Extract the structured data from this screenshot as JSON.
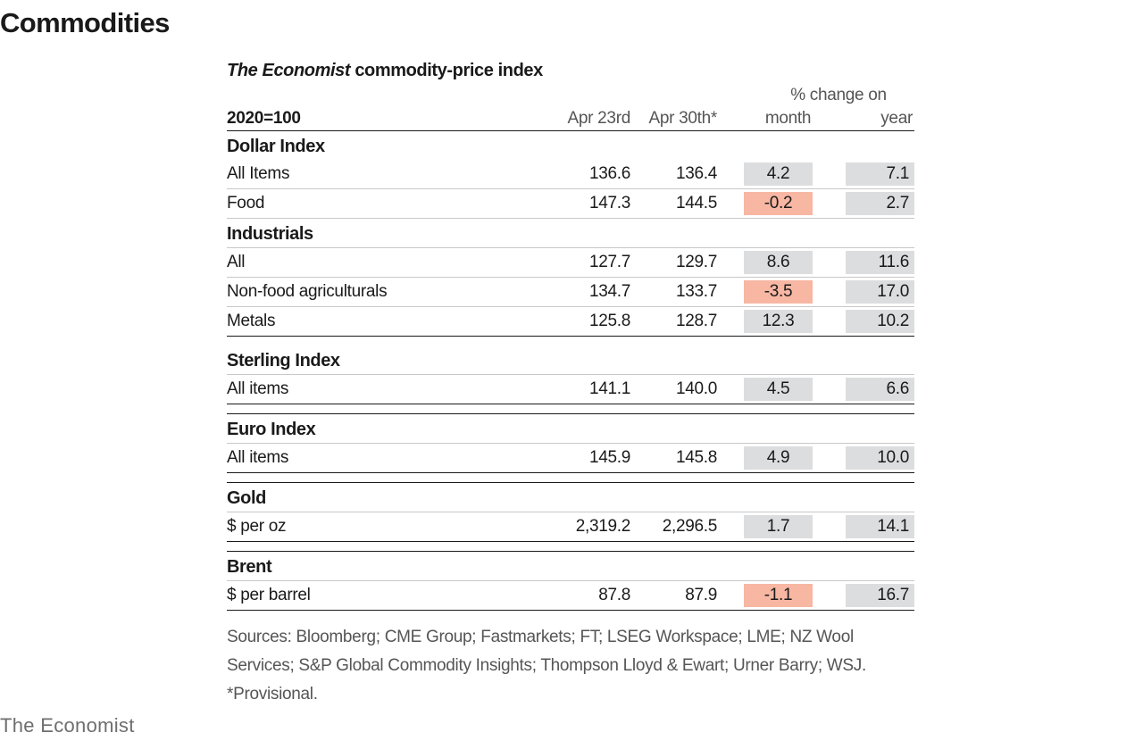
{
  "page_title": "Commodities",
  "table": {
    "title_italic": "The Economist",
    "title_rest": " commodity-price index",
    "pct_header": "% change on",
    "base_label": "2020=100",
    "col_apr23": "Apr 23rd",
    "col_apr30": "Apr 30th*",
    "col_month": "month",
    "col_year": "year",
    "sections": [
      {
        "heading": "Dollar Index",
        "rows": [
          {
            "label": "All Items",
            "apr23": "136.6",
            "apr30": "136.4",
            "month": "4.2",
            "year": "7.1",
            "month_negative": false
          },
          {
            "label": "Food",
            "apr23": "147.3",
            "apr30": "144.5",
            "month": "-0.2",
            "year": "2.7",
            "month_negative": true
          }
        ]
      },
      {
        "heading": "Industrials",
        "rows": [
          {
            "label": "All",
            "apr23": "127.7",
            "apr30": "129.7",
            "month": "8.6",
            "year": "11.6",
            "month_negative": false
          },
          {
            "label": "Non-food agriculturals",
            "apr23": "134.7",
            "apr30": "133.7",
            "month": "-3.5",
            "year": "17.0",
            "month_negative": true
          },
          {
            "label": "Metals",
            "apr23": "125.8",
            "apr30": "128.7",
            "month": "12.3",
            "year": "10.2",
            "month_negative": false
          }
        ]
      },
      {
        "heading": "Sterling Index",
        "rows": [
          {
            "label": "All items",
            "apr23": "141.1",
            "apr30": "140.0",
            "month": "4.5",
            "year": "6.6",
            "month_negative": false
          }
        ]
      },
      {
        "heading": "Euro Index",
        "rows": [
          {
            "label": "All items",
            "apr23": "145.9",
            "apr30": "145.8",
            "month": "4.9",
            "year": "10.0",
            "month_negative": false
          }
        ]
      },
      {
        "heading": "Gold",
        "rows": [
          {
            "label": "$ per oz",
            "apr23": "2,319.2",
            "apr30": "2,296.5",
            "month": "1.7",
            "year": "14.1",
            "month_negative": false
          }
        ]
      },
      {
        "heading": "Brent",
        "rows": [
          {
            "label": "$ per barrel",
            "apr23": "87.8",
            "apr30": "87.9",
            "month": "-1.1",
            "year": "16.7",
            "month_negative": true
          }
        ]
      }
    ]
  },
  "sources": {
    "line1": "Sources: Bloomberg; CME Group; Fastmarkets; FT; LSEG Workspace; LME; NZ Wool",
    "line2": "Services; S&P Global Commodity Insights; Thompson Lloyd & Ewart; Urner Barry; WSJ.",
    "line3": "*Provisional."
  },
  "brand": "The Economist",
  "colors": {
    "neutral_chip": "#dcdddf",
    "negative_chip": "#f7b7a3",
    "rule": "#1a1a1a"
  }
}
